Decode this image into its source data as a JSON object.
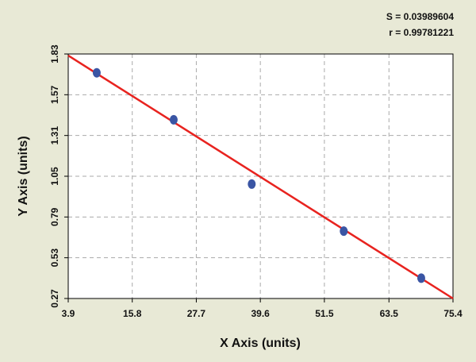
{
  "chart_data": {
    "type": "scatter",
    "annotations": [
      "S = 0.03989604",
      "r = 0.99781221"
    ],
    "xlabel": "X Axis (units)",
    "ylabel": "Y Axis (units)",
    "xlim": [
      3.9,
      75.4
    ],
    "ylim": [
      0.27,
      1.83
    ],
    "xticks": [
      3.9,
      15.8,
      27.7,
      39.6,
      51.5,
      63.5,
      75.4
    ],
    "yticks": [
      0.27,
      0.53,
      0.79,
      1.05,
      1.31,
      1.57,
      1.83
    ],
    "grid": true,
    "series": [
      {
        "type": "scatter",
        "color": "#3a55a4",
        "x": [
          9.2,
          23.5,
          38.0,
          55.1,
          69.5
        ],
        "values": [
          1.71,
          1.41,
          1.0,
          0.7,
          0.4
        ]
      },
      {
        "type": "line",
        "color": "#e8231f",
        "x": [
          3.9,
          75.4
        ],
        "values": [
          1.82,
          0.27
        ]
      }
    ]
  }
}
